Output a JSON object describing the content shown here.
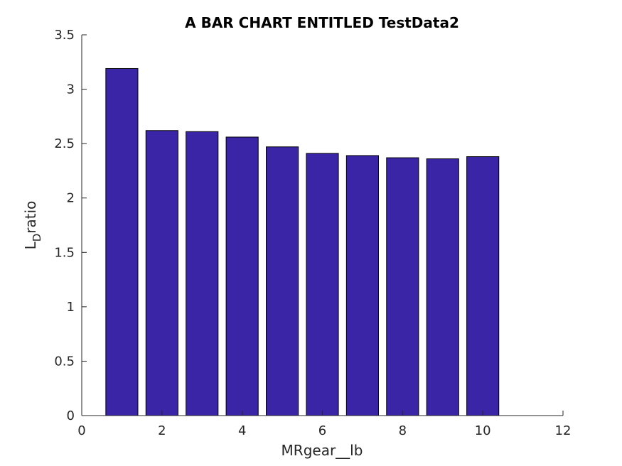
{
  "chart_data": {
    "type": "bar",
    "title": "A BAR CHART ENTITLED TestData2",
    "xlabel": "MRgear__lb",
    "ylabel": {
      "main": "L",
      "subscript": "D",
      "rest": "ratio"
    },
    "x": [
      1,
      2,
      3,
      4,
      5,
      6,
      7,
      8,
      9,
      10
    ],
    "values": [
      3.19,
      2.62,
      2.61,
      2.56,
      2.47,
      2.41,
      2.39,
      2.37,
      2.36,
      2.38
    ],
    "xlim": [
      0,
      12
    ],
    "ylim": [
      0,
      3.5
    ],
    "xticks": [
      "0",
      "2",
      "4",
      "6",
      "8",
      "10",
      "12"
    ],
    "yticks": [
      "0",
      "0.5",
      "1",
      "1.5",
      "2",
      "2.5",
      "3",
      "3.5"
    ],
    "bar_color": "#3a25a6",
    "grid": false
  }
}
